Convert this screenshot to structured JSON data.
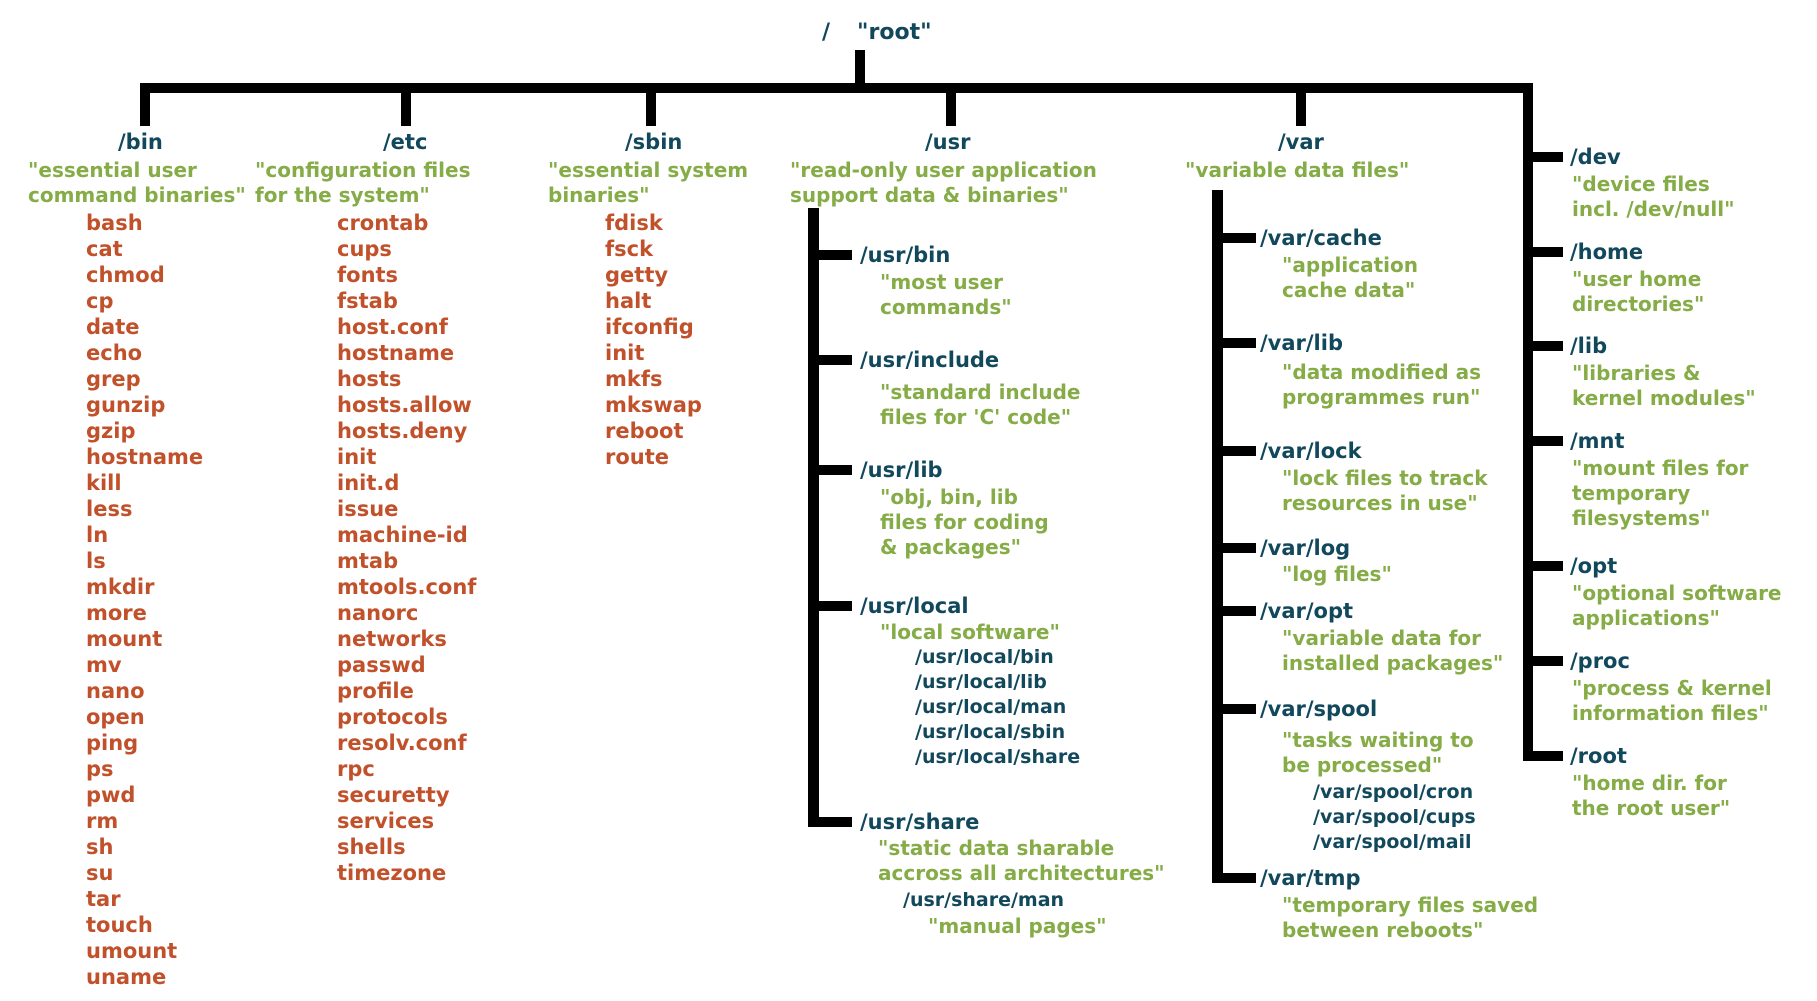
{
  "root": {
    "path": "/",
    "label": "\"root\""
  },
  "colors": {
    "directory": "#12485c",
    "description": "#85ac46",
    "file": "#c1512b",
    "connector": "#000000",
    "background": "#ffffff"
  },
  "nodes": [
    {
      "id": "bin",
      "path": "/bin",
      "desc": [
        "\"essential user",
        "command binaries\""
      ],
      "files": [
        "bash",
        "cat",
        "chmod",
        "cp",
        "date",
        "echo",
        "grep",
        "gunzip",
        "gzip",
        "hostname",
        "kill",
        "less",
        "ln",
        "ls",
        "mkdir",
        "more",
        "mount",
        "mv",
        "nano",
        "open",
        "ping",
        "ps",
        "pwd",
        "rm",
        "sh",
        "su",
        "tar",
        "touch",
        "umount",
        "uname"
      ]
    },
    {
      "id": "etc",
      "path": "/etc",
      "desc": [
        "\"configuration files",
        "for the system\""
      ],
      "files": [
        "crontab",
        "cups",
        "fonts",
        "fstab",
        "host.conf",
        "hostname",
        "hosts",
        "hosts.allow",
        "hosts.deny",
        "init",
        "init.d",
        "issue",
        "machine-id",
        "mtab",
        "mtools.conf",
        "nanorc",
        "networks",
        "passwd",
        "profile",
        "protocols",
        "resolv.conf",
        "rpc",
        "securetty",
        "services",
        "shells",
        "timezone"
      ]
    },
    {
      "id": "sbin",
      "path": "/sbin",
      "desc": [
        "\"essential system",
        "binaries\""
      ],
      "files": [
        "fdisk",
        "fsck",
        "getty",
        "halt",
        "ifconfig",
        "init",
        "mkfs",
        "mkswap",
        "reboot",
        "route"
      ]
    },
    {
      "id": "usr",
      "path": "/usr",
      "desc": [
        "\"read-only user application",
        "support data & binaries\""
      ],
      "children": [
        {
          "id": "usr_bin",
          "path": "/usr/bin",
          "desc": [
            "\"most user",
            "commands\""
          ]
        },
        {
          "id": "usr_include",
          "path": "/usr/include",
          "desc": [
            "\"standard include",
            "files for 'C' code\""
          ]
        },
        {
          "id": "usr_lib",
          "path": "/usr/lib",
          "desc": [
            "\"obj, bin, lib",
            "files for coding",
            "& packages\""
          ]
        },
        {
          "id": "usr_local",
          "path": "/usr/local",
          "desc": [
            "\"local software\""
          ],
          "subpaths": [
            "/usr/local/bin",
            "/usr/local/lib",
            "/usr/local/man",
            "/usr/local/sbin",
            "/usr/local/share"
          ]
        },
        {
          "id": "usr_share",
          "path": "/usr/share",
          "desc": [
            "\"static data sharable",
            "accross all architectures\""
          ],
          "subpaths": [
            "/usr/share/man"
          ],
          "subpath_desc": [
            "\"manual pages\""
          ]
        }
      ]
    },
    {
      "id": "var",
      "path": "/var",
      "desc": [
        "\"variable data files\""
      ],
      "children": [
        {
          "id": "var_cache",
          "path": "/var/cache",
          "desc": [
            "\"application",
            "cache data\""
          ]
        },
        {
          "id": "var_lib",
          "path": "/var/lib",
          "desc": [
            "\"data modified as",
            "programmes run\""
          ]
        },
        {
          "id": "var_lock",
          "path": "/var/lock",
          "desc": [
            "\"lock files to track",
            "resources in use\""
          ]
        },
        {
          "id": "var_log",
          "path": "/var/log",
          "desc": [
            "\"log files\""
          ]
        },
        {
          "id": "var_opt",
          "path": "/var/opt",
          "desc": [
            "\"variable data for",
            "installed packages\""
          ]
        },
        {
          "id": "var_spool",
          "path": "/var/spool",
          "desc": [
            "\"tasks waiting to",
            "be processed\""
          ],
          "subpaths": [
            "/var/spool/cron",
            "/var/spool/cups",
            "/var/spool/mail"
          ]
        },
        {
          "id": "var_tmp",
          "path": "/var/tmp",
          "desc": [
            "\"temporary files saved",
            "between reboots\""
          ]
        }
      ]
    },
    {
      "id": "dev",
      "path": "/dev",
      "desc": [
        "\"device files",
        "incl. /dev/null\""
      ]
    },
    {
      "id": "home",
      "path": "/home",
      "desc": [
        "\"user home",
        "directories\""
      ]
    },
    {
      "id": "lib",
      "path": "/lib",
      "desc": [
        "\"libraries &",
        "kernel modules\""
      ]
    },
    {
      "id": "mnt",
      "path": "/mnt",
      "desc": [
        "\"mount files for",
        "temporary",
        "filesystems\""
      ]
    },
    {
      "id": "opt",
      "path": "/opt",
      "desc": [
        "\"optional software",
        "applications\""
      ]
    },
    {
      "id": "proc",
      "path": "/proc",
      "desc": [
        "\"process & kernel",
        "information files\""
      ]
    },
    {
      "id": "root_dir",
      "path": "/root",
      "desc": [
        "\"home dir. for",
        "the root user\""
      ]
    }
  ]
}
